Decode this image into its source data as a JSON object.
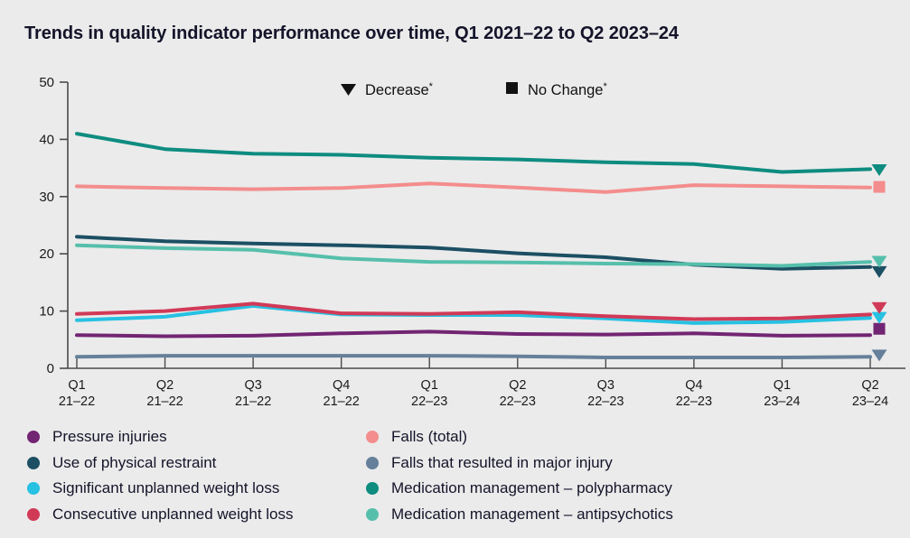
{
  "title": "Trends in quality indicator performance over time, Q1 2021–22 to Q2 2023–24",
  "colors": {
    "background": "#EBEBEB",
    "axis": "#4A4A4A",
    "annotation": "#111111",
    "purple": "#722573",
    "navy": "#1C4F63",
    "cyan": "#27C1E2",
    "red": "#D13A57",
    "salmon": "#F48D8D",
    "slate": "#66809B",
    "teal": "#0E8C80",
    "light_teal": "#56BFAC"
  },
  "annotation_legend": {
    "decrease_label": "Decrease",
    "no_change_label": "No Change",
    "asterisk": "*"
  },
  "chart_data": {
    "type": "line",
    "title": "Trends in quality indicator performance over time, Q1 2021–22 to Q2 2023–24",
    "xlabel": "",
    "ylabel": "",
    "ylim": [
      0,
      50
    ],
    "yticks": [
      0,
      10,
      20,
      30,
      40,
      50
    ],
    "grid": "off",
    "legend_position": "bottom",
    "x_categories_line1": [
      "Q1",
      "Q2",
      "Q3",
      "Q4",
      "Q1",
      "Q2",
      "Q3",
      "Q4",
      "Q1",
      "Q2"
    ],
    "x_categories_line2": [
      "21–22",
      "21–22",
      "21–22",
      "21–22",
      "22–23",
      "22–23",
      "22–23",
      "22–23",
      "23–24",
      "23–24"
    ],
    "series": [
      {
        "id": "falls-major-injury",
        "name": "Falls that resulted in major injury",
        "color": "#66809B",
        "values": [
          2.0,
          2.2,
          2.2,
          2.2,
          2.2,
          2.1,
          1.9,
          1.9,
          1.9,
          2.0
        ],
        "end_marker": {
          "type": "triangle-down",
          "meaning": "Decrease",
          "value": 2.3
        }
      },
      {
        "id": "pressure-injuries",
        "name": "Pressure injuries",
        "color": "#722573",
        "values": [
          5.8,
          5.6,
          5.7,
          6.1,
          6.4,
          6.0,
          5.9,
          6.1,
          5.7,
          5.8
        ],
        "end_marker": {
          "type": "square",
          "meaning": "No Change",
          "value": 6.9
        }
      },
      {
        "id": "significant-weight-loss",
        "name": "Significant unplanned weight loss",
        "color": "#27C1E2",
        "values": [
          8.4,
          9.0,
          10.9,
          9.4,
          9.3,
          9.3,
          8.7,
          7.9,
          8.1,
          8.8
        ],
        "end_marker": {
          "type": "triangle-down",
          "meaning": "Decrease",
          "value": 8.9
        }
      },
      {
        "id": "consecutive-weight-loss",
        "name": "Consecutive unplanned weight loss",
        "color": "#D13A57",
        "values": [
          9.5,
          10.0,
          11.3,
          9.6,
          9.5,
          9.8,
          9.1,
          8.6,
          8.7,
          9.4
        ],
        "end_marker": {
          "type": "triangle-down",
          "meaning": "Decrease",
          "value": 10.6
        }
      },
      {
        "id": "physical-restraint",
        "name": "Use of physical restraint",
        "color": "#1C4F63",
        "values": [
          23.0,
          22.2,
          21.8,
          21.5,
          21.1,
          20.1,
          19.4,
          18.1,
          17.4,
          17.7
        ],
        "end_marker": {
          "type": "triangle-down",
          "meaning": "Decrease",
          "value": 16.9
        }
      },
      {
        "id": "antipsychotics",
        "name": "Medication management – antipsychotics",
        "color": "#56BFAC",
        "values": [
          21.5,
          21.0,
          20.7,
          19.2,
          18.6,
          18.5,
          18.3,
          18.2,
          17.9,
          18.6
        ],
        "end_marker": {
          "type": "triangle-down",
          "meaning": "Decrease",
          "value": 18.7
        }
      },
      {
        "id": "falls-total",
        "name": "Falls (total)",
        "color": "#F48D8D",
        "values": [
          31.8,
          31.5,
          31.3,
          31.5,
          32.3,
          31.6,
          30.8,
          32.0,
          31.8,
          31.6
        ],
        "end_marker": {
          "type": "square",
          "meaning": "No Change",
          "value": 31.7
        }
      },
      {
        "id": "polypharmacy",
        "name": "Medication management – polypharmacy",
        "color": "#0E8C80",
        "values": [
          41.0,
          38.3,
          37.5,
          37.3,
          36.8,
          36.5,
          36.0,
          35.7,
          34.3,
          34.8
        ],
        "end_marker": {
          "type": "triangle-down",
          "meaning": "Decrease",
          "value": 34.7
        }
      }
    ]
  },
  "legend": {
    "columns": [
      {
        "items": [
          {
            "label": "Pressure injuries",
            "color": "#722573"
          },
          {
            "label": "Use of physical restraint",
            "color": "#1C4F63"
          },
          {
            "label": "Significant unplanned weight loss",
            "color": "#27C1E2"
          },
          {
            "label": "Consecutive unplanned weight loss",
            "color": "#D13A57"
          }
        ]
      },
      {
        "items": [
          {
            "label": "Falls (total)",
            "color": "#F48D8D"
          },
          {
            "label": "Falls that resulted in major injury",
            "color": "#66809B"
          },
          {
            "label": "Medication management – polypharmacy",
            "color": "#0E8C80"
          },
          {
            "label": "Medication management – antipsychotics",
            "color": "#56BFAC"
          }
        ]
      }
    ]
  }
}
